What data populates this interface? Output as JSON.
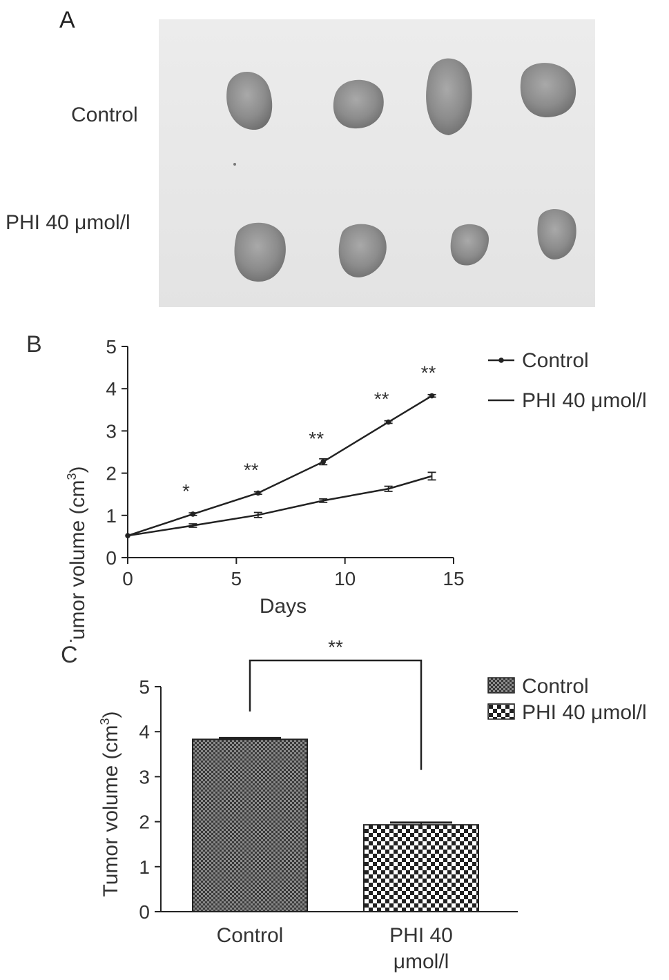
{
  "panel_a": {
    "letter": "A",
    "row_labels": [
      "Control",
      "PHI 40 μmol/l"
    ]
  },
  "chart_data": [
    {
      "panel": "B",
      "type": "line",
      "xlabel": "Days",
      "ylabel": "Tumor volume (cm",
      "ylabel_sup": "3",
      "ylabel_close": ")",
      "xlim": [
        0,
        15
      ],
      "ylim": [
        0,
        5
      ],
      "xticks": [
        0,
        5,
        10,
        15
      ],
      "yticks": [
        0,
        1,
        2,
        3,
        4,
        5
      ],
      "legend_position": "top-right",
      "series": [
        {
          "name": "Control",
          "marker": "dot",
          "x": [
            0,
            3,
            6,
            9,
            12,
            14
          ],
          "y": [
            0.52,
            1.03,
            1.53,
            2.27,
            3.21,
            3.83
          ],
          "err": [
            0,
            0.03,
            0.03,
            0.07,
            0.03,
            0.03
          ]
        },
        {
          "name": "PHI 40 μmol/l",
          "marker": "none",
          "x": [
            0,
            3,
            6,
            9,
            12,
            14
          ],
          "y": [
            0.52,
            0.76,
            1.01,
            1.35,
            1.63,
            1.93
          ],
          "err": [
            0,
            0.04,
            0.06,
            0.04,
            0.06,
            0.09
          ]
        }
      ],
      "significance": [
        {
          "x": 3,
          "label": "*"
        },
        {
          "x": 6,
          "label": "**"
        },
        {
          "x": 9,
          "label": "**"
        },
        {
          "x": 12,
          "label": "**"
        },
        {
          "x": 14,
          "label": "**"
        }
      ]
    },
    {
      "panel": "C",
      "type": "bar",
      "ylabel": "Tumor volume (cm",
      "ylabel_sup": "3",
      "ylabel_close": ")",
      "ylim": [
        0,
        5
      ],
      "yticks": [
        0,
        1,
        2,
        3,
        4,
        5
      ],
      "categories": [
        "Control",
        "PHI 40 μmol/l"
      ],
      "category_lines": [
        [
          "Control"
        ],
        [
          "PHI 40",
          "μmol/l"
        ]
      ],
      "values": [
        3.83,
        1.93
      ],
      "errors": [
        0.03,
        0.05
      ],
      "legend_position": "top-right",
      "legend": [
        "Control",
        "PHI 40 μmol/l"
      ],
      "significance_label": "**"
    }
  ]
}
